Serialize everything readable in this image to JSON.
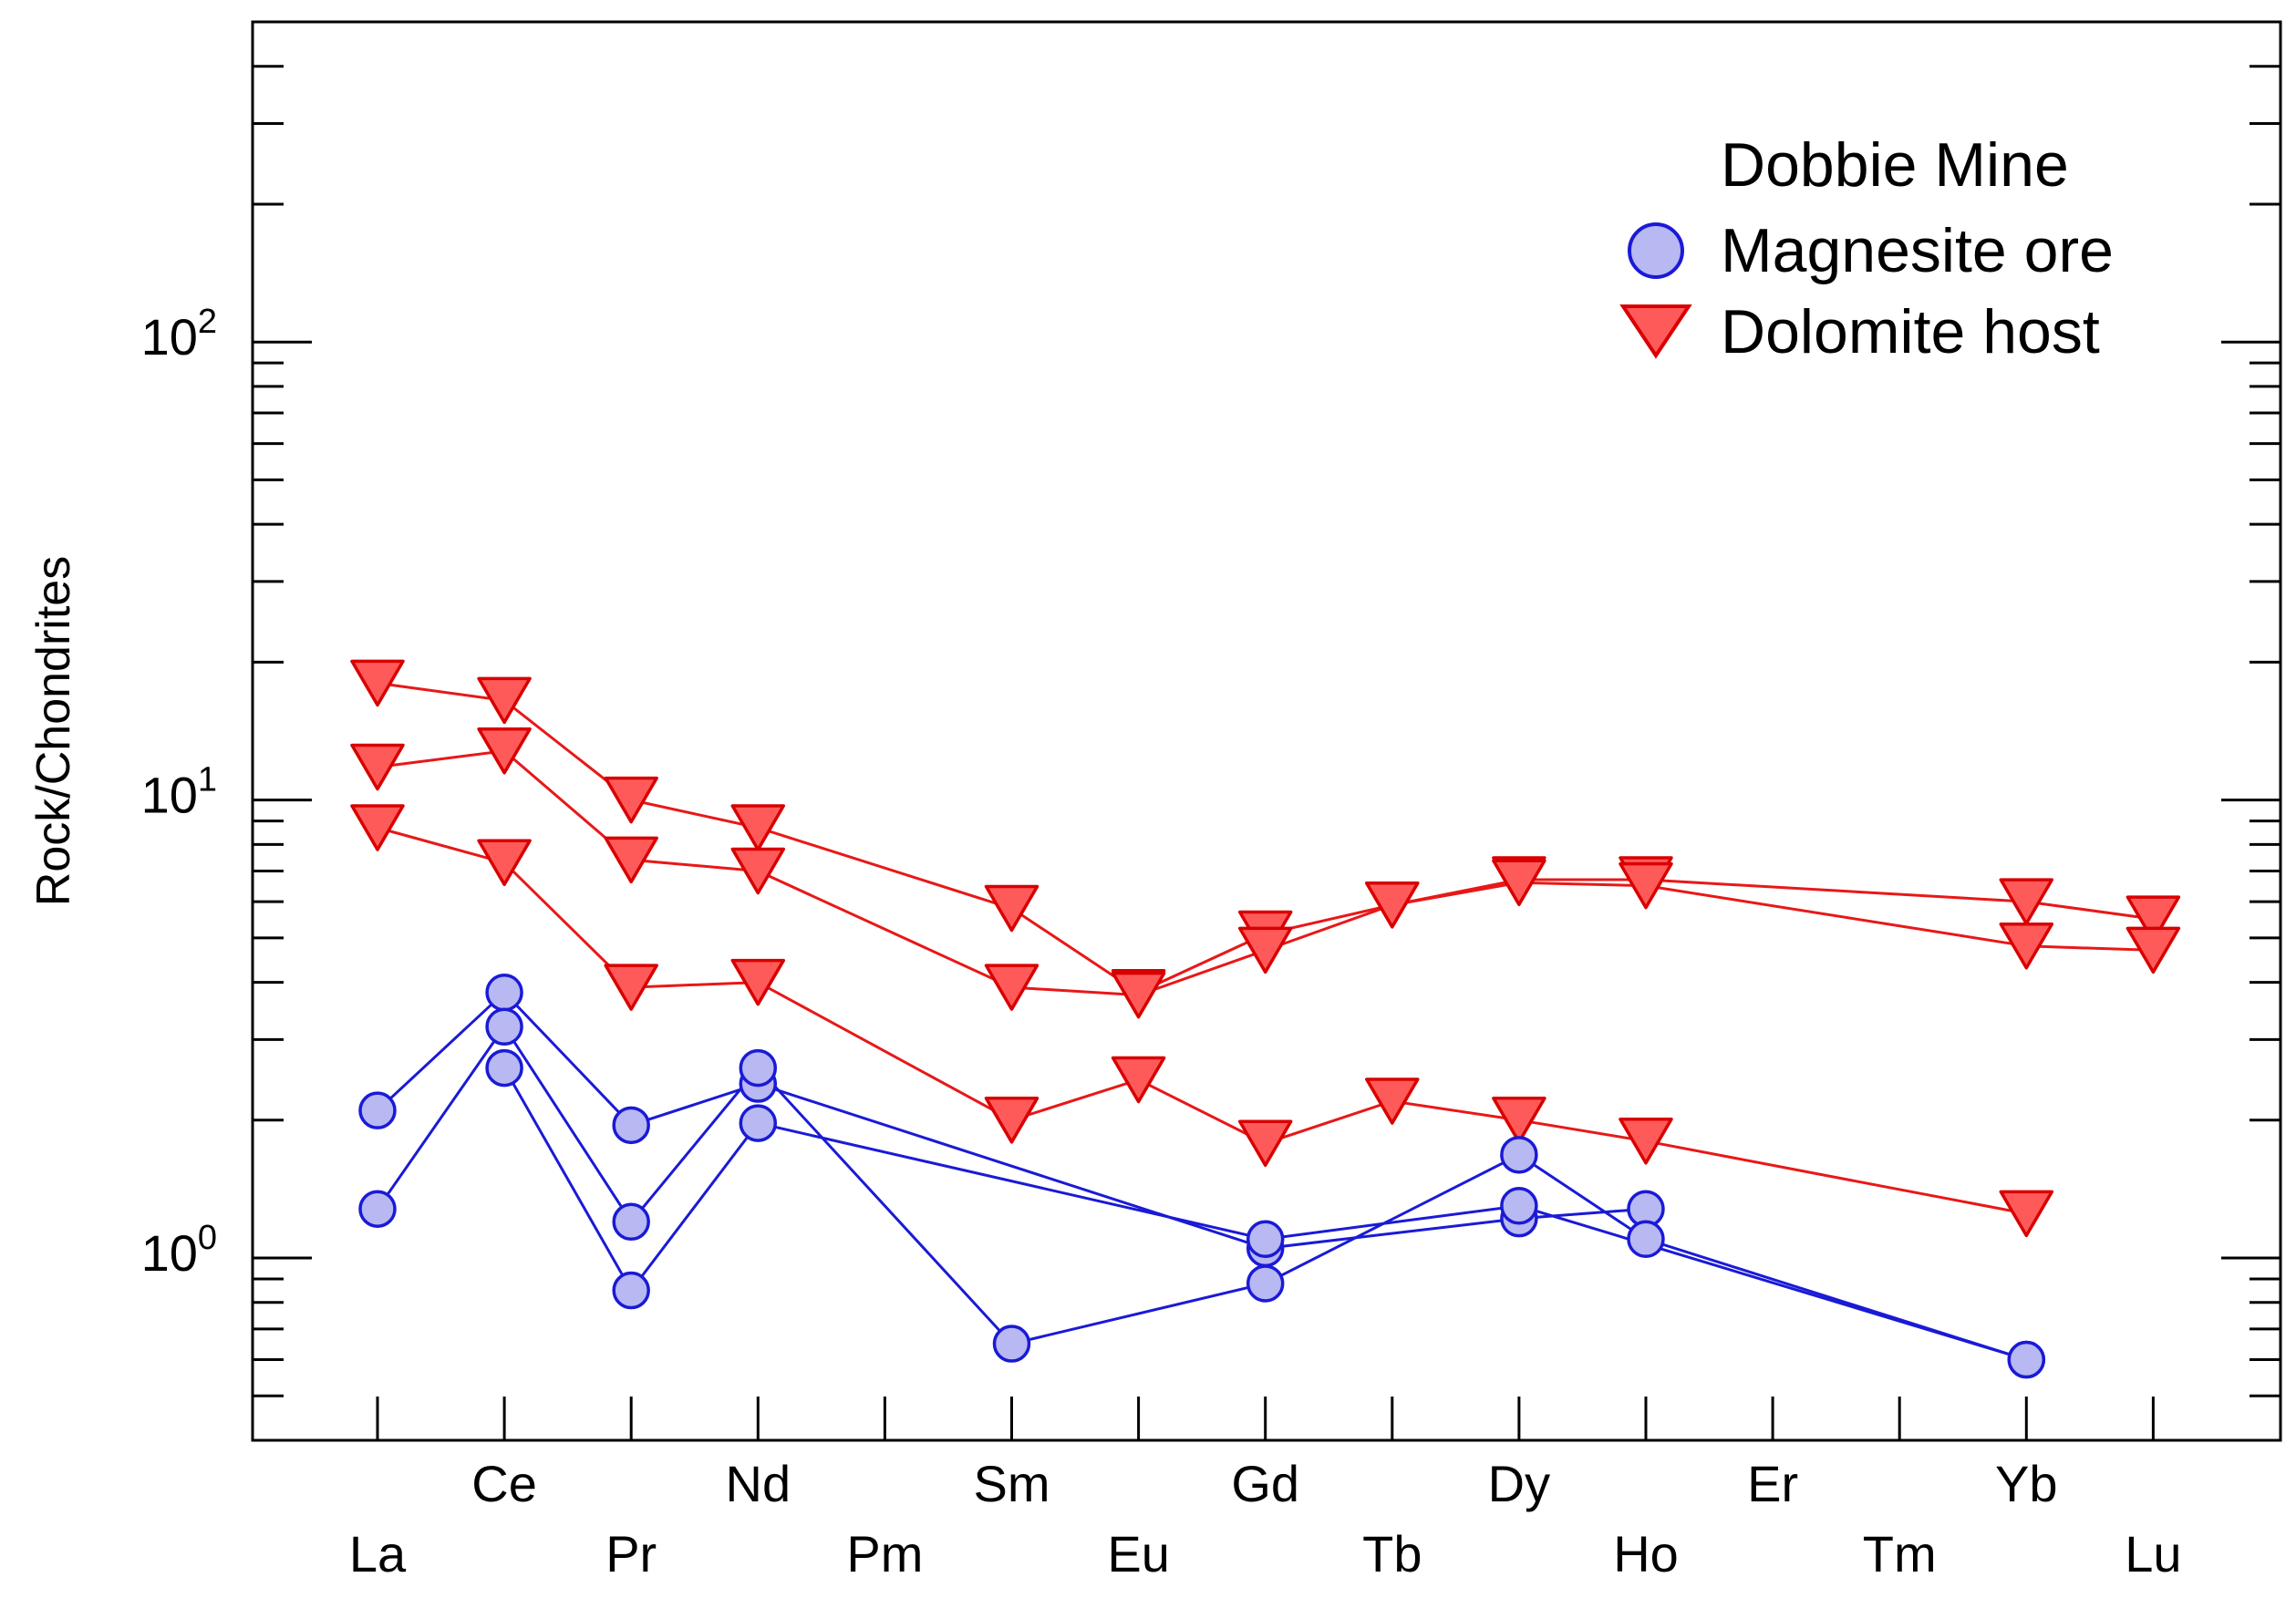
{
  "chart_data": {
    "type": "line",
    "title": "",
    "xlabel": "",
    "ylabel": "Rock/Chondrites",
    "yscale": "log",
    "ylim": [
      0.4,
      500
    ],
    "categories": [
      "La",
      "Ce",
      "Pr",
      "Nd",
      "Pm",
      "Sm",
      "Eu",
      "Gd",
      "Tb",
      "Dy",
      "Ho",
      "Er",
      "Tm",
      "Yb",
      "Lu"
    ],
    "y_tick_labels": [
      {
        "value": 1,
        "base": "10",
        "exp": "0"
      },
      {
        "value": 10,
        "base": "10",
        "exp": "1"
      },
      {
        "value": 100,
        "base": "10",
        "exp": "2"
      }
    ],
    "legend": {
      "title": "Dobbie Mine",
      "position": "top-right",
      "entries": [
        {
          "label": "Magnesite ore",
          "marker": "circle"
        },
        {
          "label": "Dolomite host",
          "marker": "triangle-down"
        }
      ]
    },
    "colors": {
      "magnesite_line": "#1a1ad6",
      "magnesite_fill": "#b8b8f2",
      "magnesite_stroke": "#1a1ad6",
      "dolomite_line": "#e81818",
      "dolomite_fill": "#ff5a5a",
      "dolomite_stroke": "#d80000",
      "axis": "#000000"
    },
    "series": [
      {
        "name": "Magnesite ore 1",
        "group": "Magnesite ore",
        "points": [
          [
            "La",
            2.1
          ],
          [
            "Ce",
            3.8
          ],
          [
            "Pr",
            1.95
          ],
          [
            "Nd",
            2.4
          ],
          [
            "Gd",
            1.05
          ],
          [
            "Dy",
            1.22
          ],
          [
            "Ho",
            1.28
          ]
        ]
      },
      {
        "name": "Magnesite ore 2",
        "group": "Magnesite ore",
        "points": [
          [
            "La",
            1.28
          ],
          [
            "Ce",
            3.2
          ],
          [
            "Pr",
            1.2
          ],
          [
            "Nd",
            2.6
          ],
          [
            "Sm",
            0.65
          ],
          [
            "Gd",
            0.88
          ],
          [
            "Dy",
            1.68
          ],
          [
            "Ho",
            1.1
          ],
          [
            "Yb",
            0.6
          ]
        ]
      },
      {
        "name": "Magnesite ore 3",
        "group": "Magnesite ore",
        "points": [
          [
            "Ce",
            2.6
          ],
          [
            "Pr",
            0.85
          ],
          [
            "Nd",
            1.97
          ],
          [
            "Gd",
            1.1
          ],
          [
            "Dy",
            1.3
          ],
          [
            "Yb",
            0.6
          ]
        ]
      },
      {
        "name": "Dolomite host 1",
        "group": "Dolomite host",
        "points": [
          [
            "La",
            18
          ],
          [
            "Ce",
            16.5
          ],
          [
            "Pr",
            10
          ],
          [
            "Nd",
            8.7
          ],
          [
            "Sm",
            5.8
          ],
          [
            "Eu",
            3.8
          ],
          [
            "Gd",
            5.1
          ],
          [
            "Tb",
            5.9
          ],
          [
            "Dy",
            6.7
          ],
          [
            "Ho",
            6.7
          ],
          [
            "Yb",
            6.0
          ],
          [
            "Lu",
            5.5
          ]
        ]
      },
      {
        "name": "Dolomite host 2",
        "group": "Dolomite host",
        "points": [
          [
            "La",
            11.8
          ],
          [
            "Ce",
            12.8
          ],
          [
            "Pr",
            7.4
          ],
          [
            "Nd",
            7.0
          ],
          [
            "Sm",
            3.9
          ],
          [
            "Eu",
            3.75
          ],
          [
            "Gd",
            4.7
          ],
          [
            "Tb",
            5.9
          ],
          [
            "Dy",
            6.6
          ],
          [
            "Ho",
            6.5
          ],
          [
            "Yb",
            4.8
          ],
          [
            "Lu",
            4.7
          ]
        ]
      },
      {
        "name": "Dolomite host 3",
        "group": "Dolomite host",
        "points": [
          [
            "La",
            8.7
          ],
          [
            "Ce",
            7.3
          ],
          [
            "Pr",
            3.9
          ],
          [
            "Nd",
            4.0
          ],
          [
            "Sm",
            2.0
          ],
          [
            "Eu",
            2.45
          ],
          [
            "Gd",
            1.78
          ],
          [
            "Tb",
            2.2
          ],
          [
            "Dy",
            2.0
          ],
          [
            "Ho",
            1.8
          ],
          [
            "Yb",
            1.25
          ]
        ]
      }
    ]
  }
}
